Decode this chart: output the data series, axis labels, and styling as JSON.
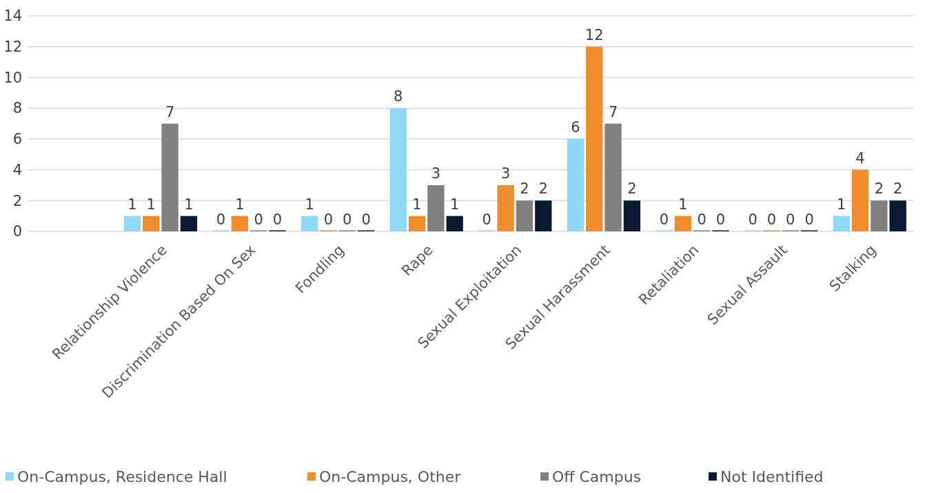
{
  "chart_data": {
    "type": "bar",
    "categories": [
      null,
      "Relationship Violence",
      "Discrimination Based On Sex",
      "Fondling",
      "Rape",
      "Sexual Exploitation",
      "Sexual Harassment",
      "Retaliation",
      "Sexual Assault",
      "Stalking"
    ],
    "series": [
      {
        "name": "On-Campus, Residence Hall",
        "color": "#8fd8f7",
        "values": [
          null,
          1,
          0,
          1,
          8,
          0,
          6,
          0,
          0,
          1
        ]
      },
      {
        "name": "On-Campus, Other",
        "color": "#f08c2e",
        "values": [
          null,
          1,
          1,
          0,
          1,
          3,
          12,
          1,
          0,
          4
        ]
      },
      {
        "name": "Off Campus",
        "color": "#808080",
        "values": [
          null,
          7,
          0,
          0,
          3,
          2,
          7,
          0,
          0,
          2
        ]
      },
      {
        "name": "Not Identified",
        "color": "#0b1a33",
        "values": [
          null,
          1,
          0,
          0,
          1,
          2,
          2,
          0,
          0,
          2
        ]
      }
    ],
    "ylim": [
      0,
      14
    ],
    "yticks": [
      0,
      2,
      4,
      6,
      8,
      10,
      12,
      14
    ],
    "grid": "y",
    "data_labels": true,
    "legend": "bottom"
  }
}
